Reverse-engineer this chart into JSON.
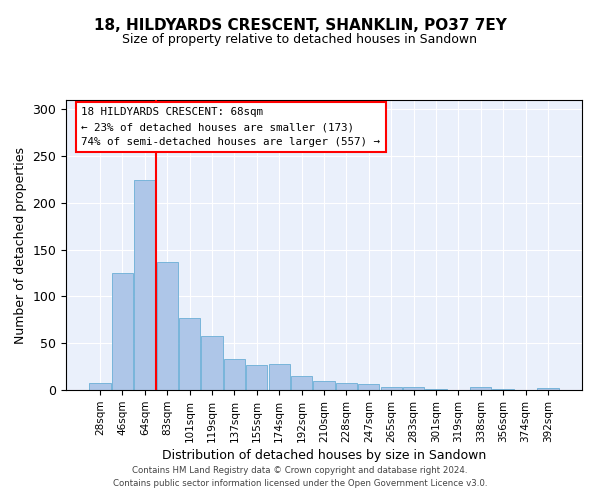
{
  "title": "18, HILDYARDS CRESCENT, SHANKLIN, PO37 7EY",
  "subtitle": "Size of property relative to detached houses in Sandown",
  "xlabel": "Distribution of detached houses by size in Sandown",
  "ylabel": "Number of detached properties",
  "bar_color": "#aec6e8",
  "bar_edge_color": "#6baed6",
  "background_color": "#eaf0fb",
  "categories": [
    "28sqm",
    "46sqm",
    "64sqm",
    "83sqm",
    "101sqm",
    "119sqm",
    "137sqm",
    "155sqm",
    "174sqm",
    "192sqm",
    "210sqm",
    "228sqm",
    "247sqm",
    "265sqm",
    "283sqm",
    "301sqm",
    "319sqm",
    "338sqm",
    "356sqm",
    "374sqm",
    "392sqm"
  ],
  "values": [
    7,
    125,
    225,
    137,
    77,
    58,
    33,
    27,
    28,
    15,
    10,
    8,
    6,
    3,
    3,
    1,
    0,
    3,
    1,
    0,
    2
  ],
  "ylim": [
    0,
    310
  ],
  "yticks": [
    0,
    50,
    100,
    150,
    200,
    250,
    300
  ],
  "red_line_x": 2.48,
  "annotation_text": "18 HILDYARDS CRESCENT: 68sqm\n← 23% of detached houses are smaller (173)\n74% of semi-detached houses are larger (557) →",
  "footer_line1": "Contains HM Land Registry data © Crown copyright and database right 2024.",
  "footer_line2": "Contains public sector information licensed under the Open Government Licence v3.0."
}
